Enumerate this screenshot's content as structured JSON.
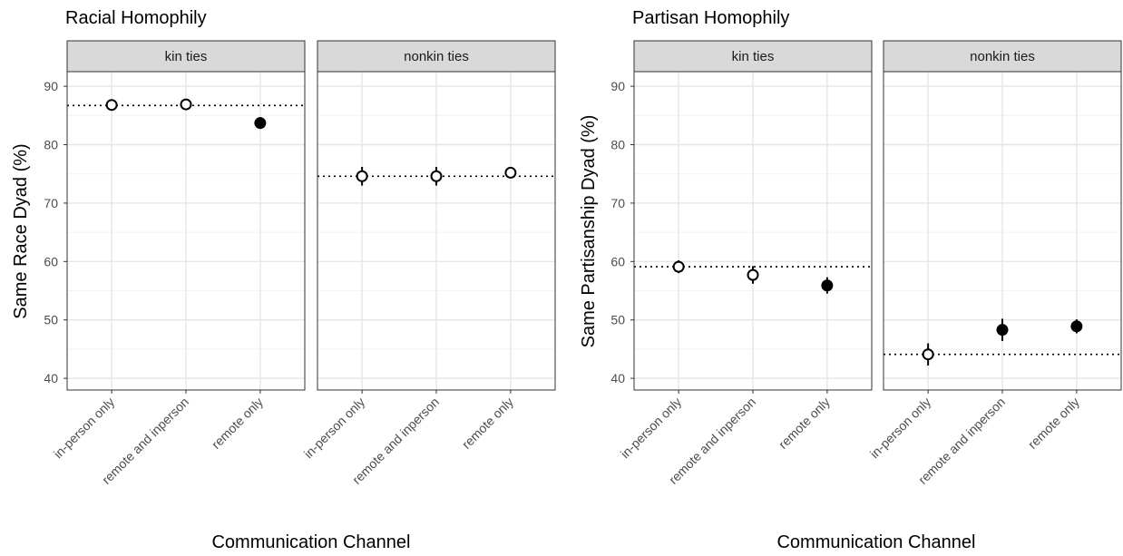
{
  "chart_data": [
    {
      "type": "scatter",
      "title": "Racial Homophily",
      "xlabel": "Communication Channel",
      "ylabel": "Same Race Dyad (%)",
      "ylim": [
        38,
        92.5
      ],
      "yticks": [
        40,
        50,
        60,
        70,
        80,
        90
      ],
      "grid": true,
      "categories": [
        "in-person only",
        "remote and inperson",
        "remote only"
      ],
      "facets": [
        {
          "label": "kin ties",
          "reference_line": 86.7,
          "points": [
            {
              "category": "in-person only",
              "value": 86.8,
              "low": 86.2,
              "high": 87.4,
              "filled": false
            },
            {
              "category": "remote and inperson",
              "value": 86.9,
              "low": 86.3,
              "high": 87.5,
              "filled": false
            },
            {
              "category": "remote only",
              "value": 83.7,
              "low": 82.7,
              "high": 84.7,
              "filled": true
            }
          ]
        },
        {
          "label": "nonkin ties",
          "reference_line": 74.6,
          "points": [
            {
              "category": "in-person only",
              "value": 74.6,
              "low": 73.0,
              "high": 76.2,
              "filled": false
            },
            {
              "category": "remote and inperson",
              "value": 74.6,
              "low": 73.0,
              "high": 76.2,
              "filled": false
            },
            {
              "category": "remote only",
              "value": 75.2,
              "low": 74.5,
              "high": 75.9,
              "filled": false
            }
          ]
        }
      ]
    },
    {
      "type": "scatter",
      "title": "Partisan Homophily",
      "xlabel": "Communication Channel",
      "ylabel": "Same Partisanship Dyad (%)",
      "ylim": [
        38,
        92.5
      ],
      "yticks": [
        40,
        50,
        60,
        70,
        80,
        90
      ],
      "grid": true,
      "categories": [
        "in-person only",
        "remote and inperson",
        "remote only"
      ],
      "facets": [
        {
          "label": "kin ties",
          "reference_line": 59.1,
          "points": [
            {
              "category": "in-person only",
              "value": 59.1,
              "low": 58.0,
              "high": 60.2,
              "filled": false
            },
            {
              "category": "remote and inperson",
              "value": 57.7,
              "low": 56.2,
              "high": 59.2,
              "filled": false
            },
            {
              "category": "remote only",
              "value": 55.9,
              "low": 54.5,
              "high": 57.3,
              "filled": true
            }
          ]
        },
        {
          "label": "nonkin ties",
          "reference_line": 44.1,
          "points": [
            {
              "category": "in-person only",
              "value": 44.1,
              "low": 42.2,
              "high": 46.0,
              "filled": false
            },
            {
              "category": "remote and inperson",
              "value": 48.3,
              "low": 46.4,
              "high": 50.2,
              "filled": true
            },
            {
              "category": "remote only",
              "value": 48.9,
              "low": 47.7,
              "high": 50.1,
              "filled": true
            }
          ]
        }
      ]
    }
  ]
}
